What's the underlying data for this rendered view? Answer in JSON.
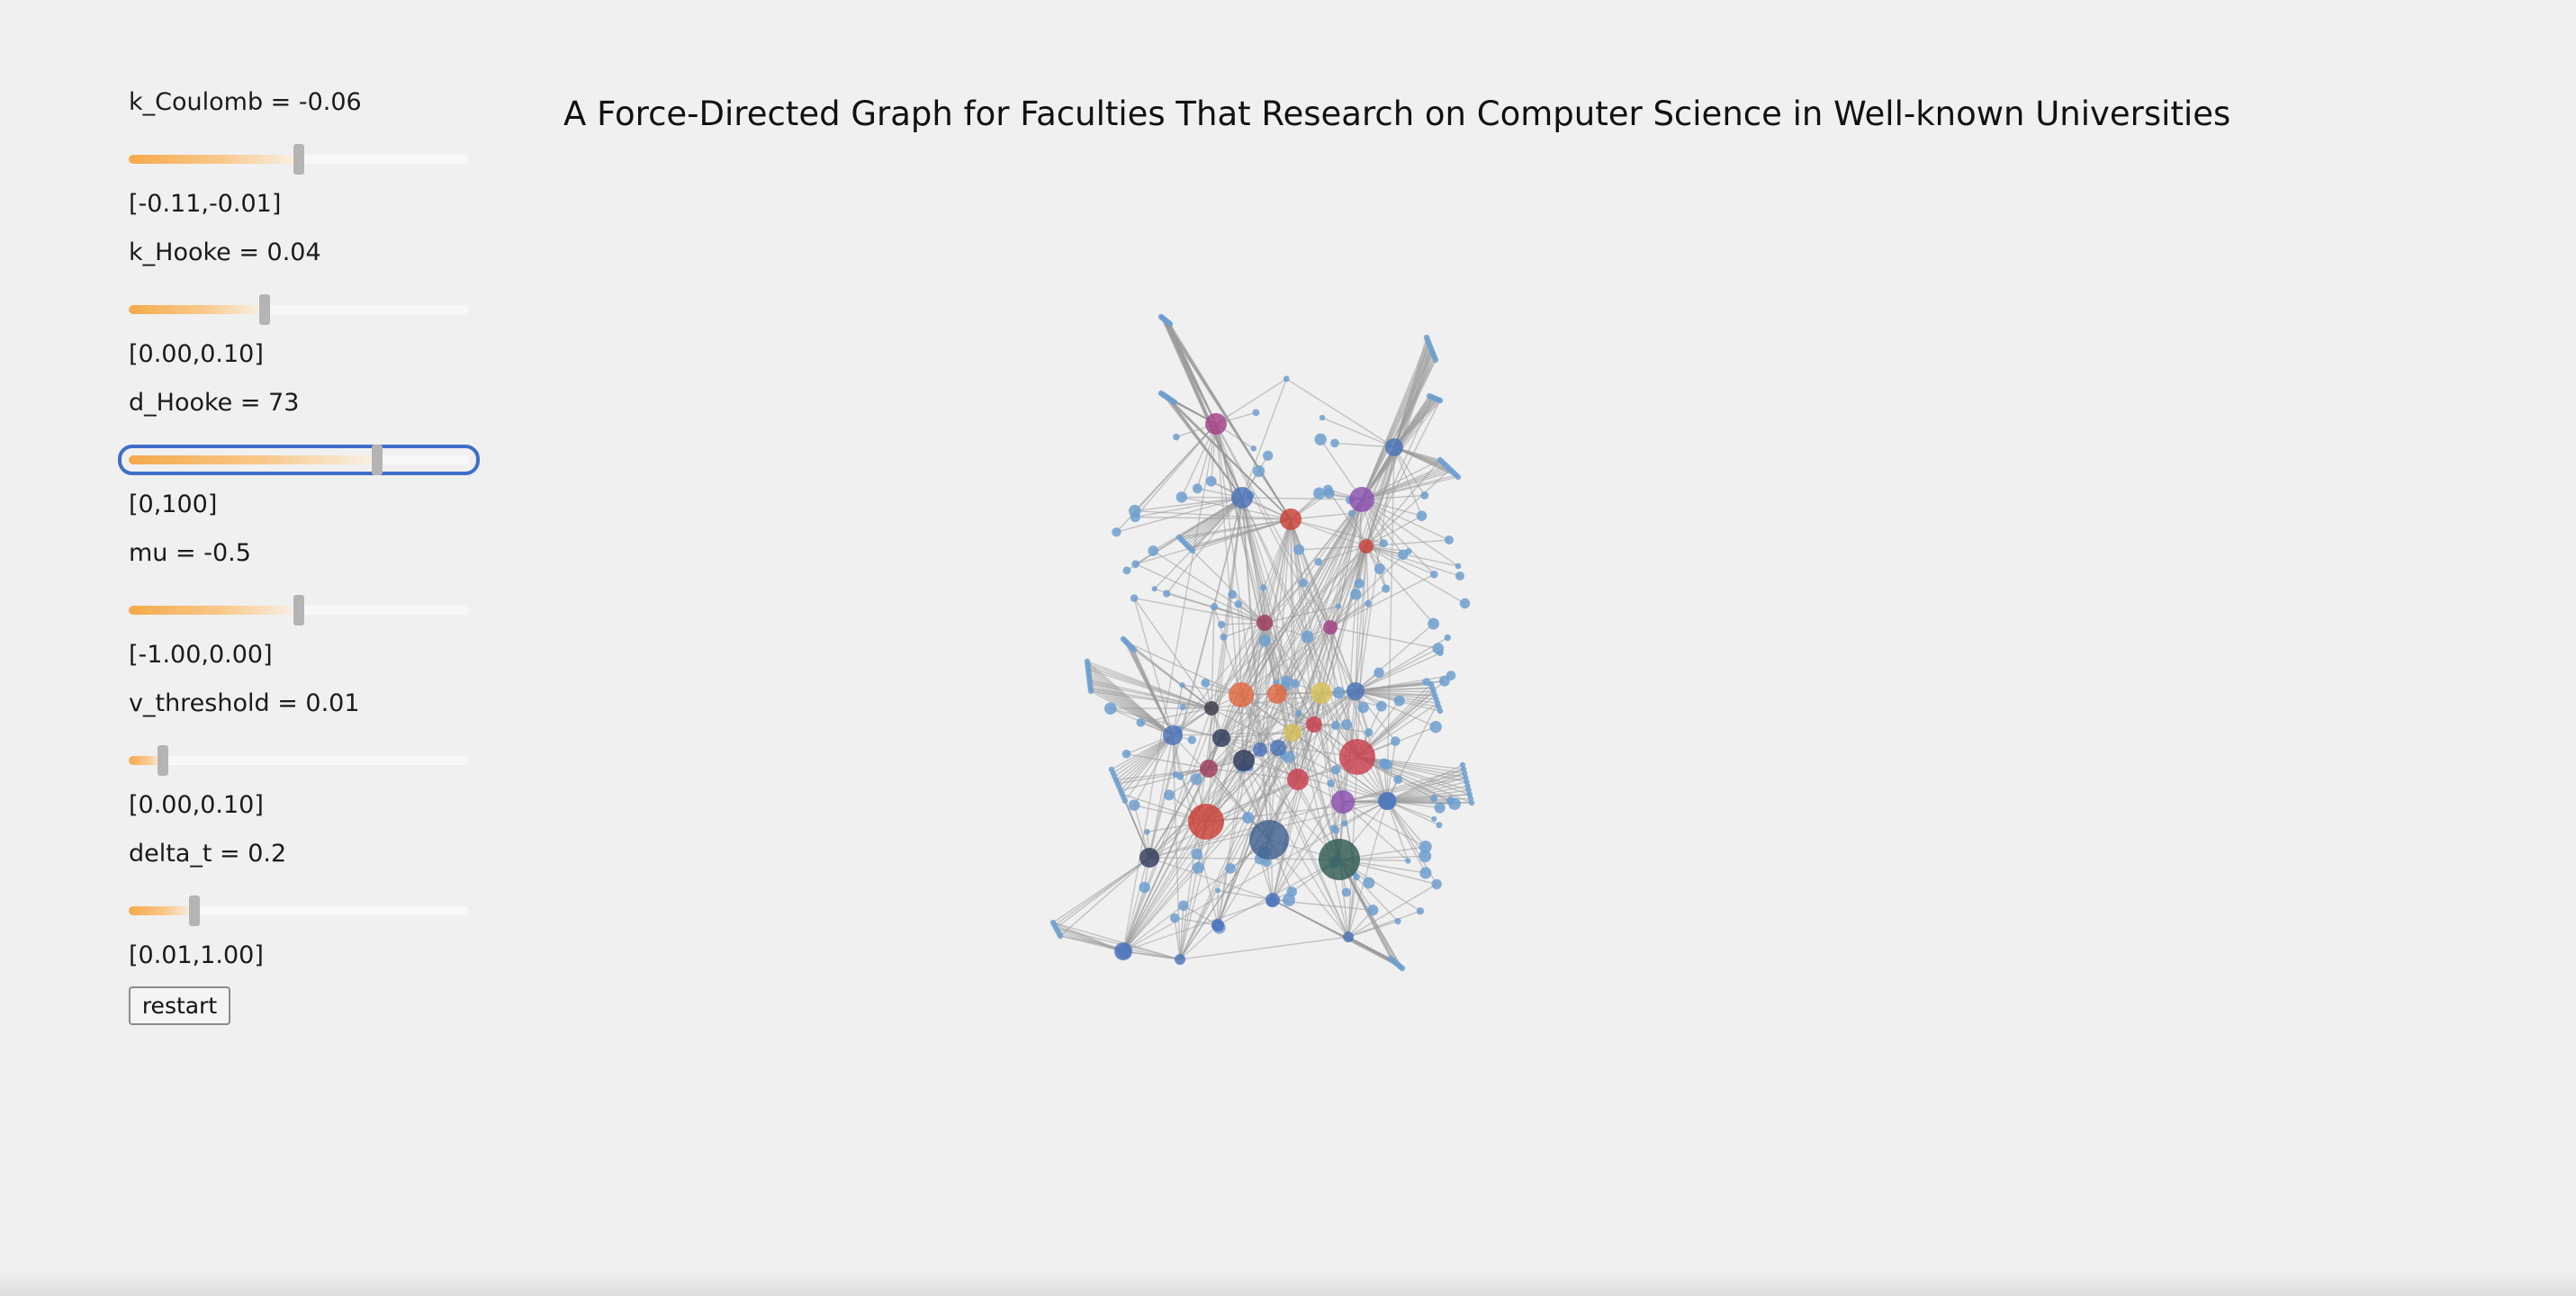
{
  "title": "A Force-Directed Graph for Faculties That Research on Computer Science in Well-known Universities",
  "controls": [
    {
      "label": "k_Coulomb = -0.06",
      "range": "[-0.11,-0.01]",
      "min": -0.11,
      "max": -0.01,
      "value": -0.06
    },
    {
      "label": "k_Hooke = 0.04",
      "range": "[0.00,0.10]",
      "min": 0.0,
      "max": 0.1,
      "value": 0.04
    },
    {
      "label": "d_Hooke = 73",
      "range": "[0,100]",
      "min": 0,
      "max": 100,
      "value": 73
    },
    {
      "label": "mu = -0.5",
      "range": "[-1.00,0.00]",
      "min": -1.0,
      "max": 0.0,
      "value": -0.5
    },
    {
      "label": "v_threshold = 0.01",
      "range": "[0.00,0.10]",
      "min": 0.0,
      "max": 0.1,
      "value": 0.01
    },
    {
      "label": "delta_t = 0.2",
      "range": "[0.01,1.00]",
      "min": 0.01,
      "max": 1.0,
      "value": 0.2
    }
  ],
  "focused_control": "d_Hooke",
  "restart_label": "restart",
  "colors": {
    "leaf_node": "#6f9fcf",
    "edge": "#9a9a9a",
    "slider_fill": "#f5a94a",
    "slider_thumb": "#b4b4b4",
    "focus_ring": "#3d6fc9",
    "hub_palette": [
      "#c9404e",
      "#3f5f8f",
      "#2f5a52",
      "#8a4fb0",
      "#a23f86",
      "#c93f36",
      "#e0683f",
      "#d7c15a",
      "#2f3b5c",
      "#4a72b8",
      "#9e3a5a",
      "#3b3b4a"
    ]
  }
}
